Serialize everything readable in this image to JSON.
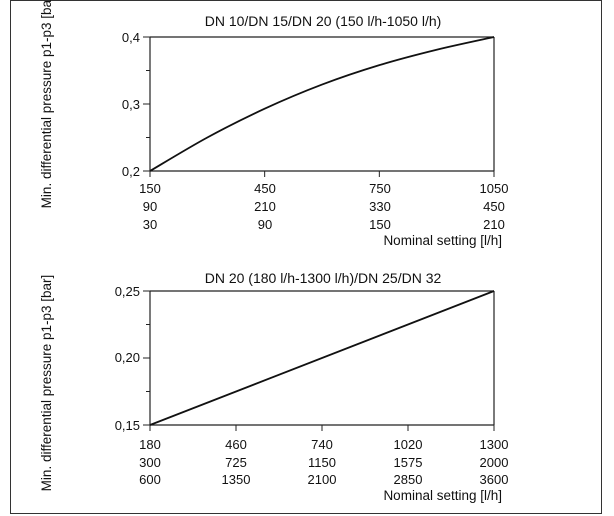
{
  "chart_data": [
    {
      "type": "line",
      "title": "DN 10/DN 15/DN 20 (150 l/h-1050 l/h)",
      "xlabel": "Nominal setting [l/h]",
      "ylabel": "Min. differential pressure p1-p3 [bar]",
      "x_tick_rows": [
        [
          "150",
          "450",
          "750",
          "1050"
        ],
        [
          "90",
          "210",
          "330",
          "450"
        ],
        [
          "30",
          "90",
          "150",
          "210"
        ]
      ],
      "y_ticks": [
        "0,2",
        "0,3",
        "0,4"
      ],
      "xlim": [
        150,
        1050
      ],
      "ylim": [
        0.2,
        0.4
      ],
      "grid": false,
      "series": [
        {
          "x": [
            150,
            300,
            450,
            600,
            750,
            900,
            1050
          ],
          "y": [
            0.2,
            0.25,
            0.293,
            0.329,
            0.358,
            0.381,
            0.4
          ]
        }
      ]
    },
    {
      "type": "line",
      "title": "DN 20 (180 l/h-1300 l/h)/DN 25/DN 32",
      "xlabel": "Nominal setting [l/h]",
      "ylabel": "Min. differential pressure p1-p3 [bar]",
      "x_tick_rows": [
        [
          "180",
          "460",
          "740",
          "1020",
          "1300"
        ],
        [
          "300",
          "725",
          "1150",
          "1575",
          "2000"
        ],
        [
          "600",
          "1350",
          "2100",
          "2850",
          "3600"
        ]
      ],
      "y_ticks": [
        "0,15",
        "0,20",
        "0,25"
      ],
      "xlim": [
        180,
        1300
      ],
      "ylim": [
        0.15,
        0.25
      ],
      "grid": false,
      "series": [
        {
          "x": [
            180,
            1300
          ],
          "y": [
            0.15,
            0.25
          ]
        }
      ]
    }
  ]
}
